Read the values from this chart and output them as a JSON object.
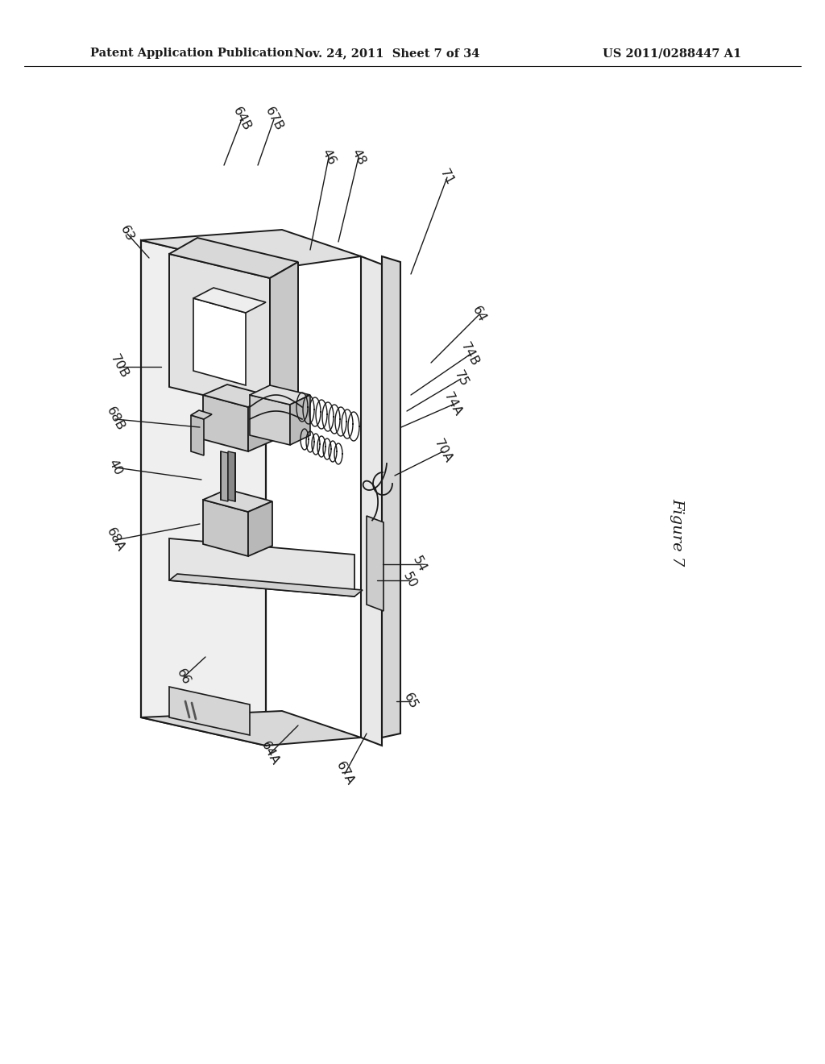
{
  "bg_color": "#ffffff",
  "lc": "#1a1a1a",
  "header_left": "Patent Application Publication",
  "header_center": "Nov. 24, 2011  Sheet 7 of 34",
  "header_right": "US 2011/0288447 A1",
  "figure_label": "Figure 7",
  "fig_width": 10.24,
  "fig_height": 13.2,
  "dpi": 100,
  "annotations": [
    [
      "64B",
      300,
      148,
      278,
      205,
      -62
    ],
    [
      "67B",
      340,
      148,
      320,
      205,
      -62
    ],
    [
      "63",
      158,
      290,
      185,
      320,
      -62
    ],
    [
      "46",
      408,
      195,
      385,
      310,
      -62
    ],
    [
      "48",
      445,
      195,
      420,
      300,
      -62
    ],
    [
      "71",
      555,
      220,
      510,
      340,
      -62
    ],
    [
      "64",
      595,
      390,
      535,
      450,
      -62
    ],
    [
      "74B",
      583,
      440,
      510,
      490,
      -62
    ],
    [
      "75",
      572,
      470,
      505,
      510,
      -62
    ],
    [
      "74A",
      562,
      502,
      498,
      530,
      -62
    ],
    [
      "70A",
      550,
      560,
      490,
      590,
      -62
    ],
    [
      "70B",
      148,
      455,
      200,
      455,
      -62
    ],
    [
      "68B",
      143,
      520,
      248,
      530,
      -62
    ],
    [
      "40",
      143,
      580,
      250,
      595,
      -62
    ],
    [
      "68A",
      143,
      670,
      248,
      650,
      -62
    ],
    [
      "50",
      508,
      720,
      468,
      720,
      -62
    ],
    [
      "54",
      520,
      700,
      475,
      700,
      -62
    ],
    [
      "65",
      510,
      870,
      492,
      870,
      -62
    ],
    [
      "66",
      228,
      840,
      255,
      815,
      -62
    ],
    [
      "64A",
      335,
      935,
      370,
      900,
      -62
    ],
    [
      "67A",
      428,
      960,
      455,
      910,
      -62
    ]
  ]
}
